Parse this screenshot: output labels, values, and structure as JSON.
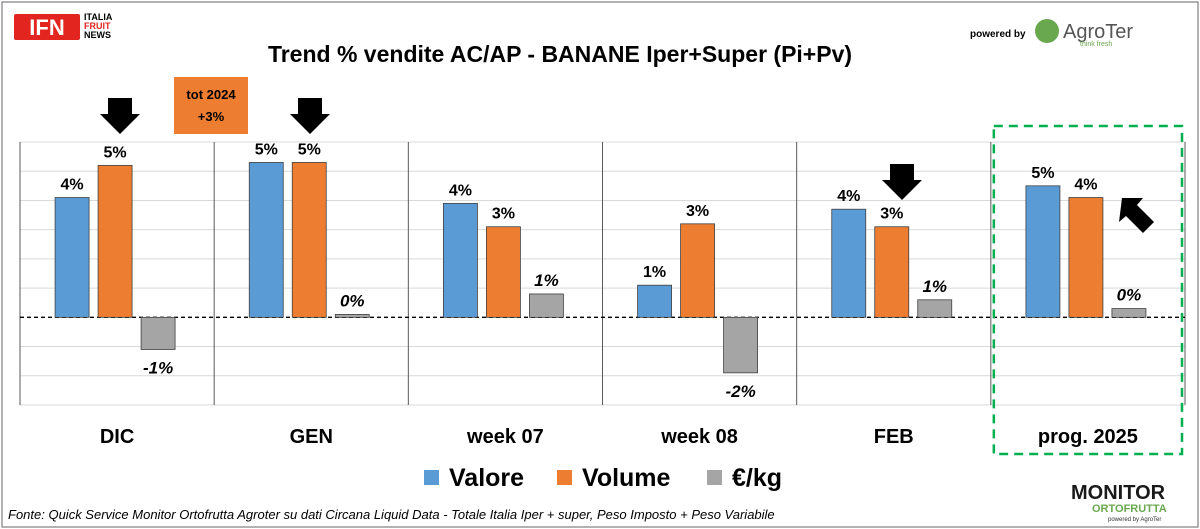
{
  "brand": {
    "ifn_logo": "IFN",
    "ifn_line1": "ITALIA",
    "ifn_line2": "FRUIT",
    "ifn_line3": "NEWS",
    "powered_by": "powered by",
    "agroter_name": "AgroTer",
    "agroter_tag": "think fresh",
    "monitor_line1": "MONITOR",
    "monitor_line2": "ORTOFRUTTA",
    "monitor_line3": "powered by AgroTer"
  },
  "annotation": {
    "line1": "tot 2024",
    "line2": "+3%",
    "color": "#ed7d31"
  },
  "source": "Fonte: Quick Service Monitor Ortofrutta Agroter su dati Circana Liquid Data - Totale Italia Iper + super, Peso Imposto + Peso Variabile",
  "colors": {
    "valore": "#5b9bd5",
    "volume": "#ed7d31",
    "prezzo": "#a5a5a5",
    "highlight_box": "#00b050",
    "ifn_red": "#e3251f",
    "agroter_green": "#6aa84f"
  },
  "icons": [
    "arrow-down-icon",
    "arrow-down-icon",
    "arrow-down-icon",
    "arrow-up-left-icon"
  ],
  "chart_data": {
    "type": "bar",
    "title": "Trend % vendite AC/AP - BANANE  Iper+Super (Pi+Pv)",
    "categories": [
      "DIC",
      "GEN",
      "week 07",
      "week 08",
      "FEB",
      "prog. 2025"
    ],
    "series": [
      {
        "name": "Valore",
        "values": [
          4.1,
          5.3,
          3.9,
          1.1,
          3.7,
          4.5
        ],
        "labels": [
          "4%",
          "5%",
          "4%",
          "1%",
          "4%",
          "5%"
        ]
      },
      {
        "name": "Volume",
        "values": [
          5.2,
          5.3,
          3.1,
          3.2,
          3.1,
          4.1
        ],
        "labels": [
          "5%",
          "5%",
          "3%",
          "3%",
          "3%",
          "4%"
        ]
      },
      {
        "name": "€/kg",
        "values": [
          -1.1,
          0.1,
          0.8,
          -1.9,
          0.6,
          0.3
        ],
        "labels": [
          "-1%",
          "0%",
          "1%",
          "-2%",
          "1%",
          "0%"
        ]
      }
    ],
    "ylim": [
      -3,
      6
    ],
    "grid": true,
    "legend": "bottom",
    "highlighted_category": "prog. 2025"
  }
}
